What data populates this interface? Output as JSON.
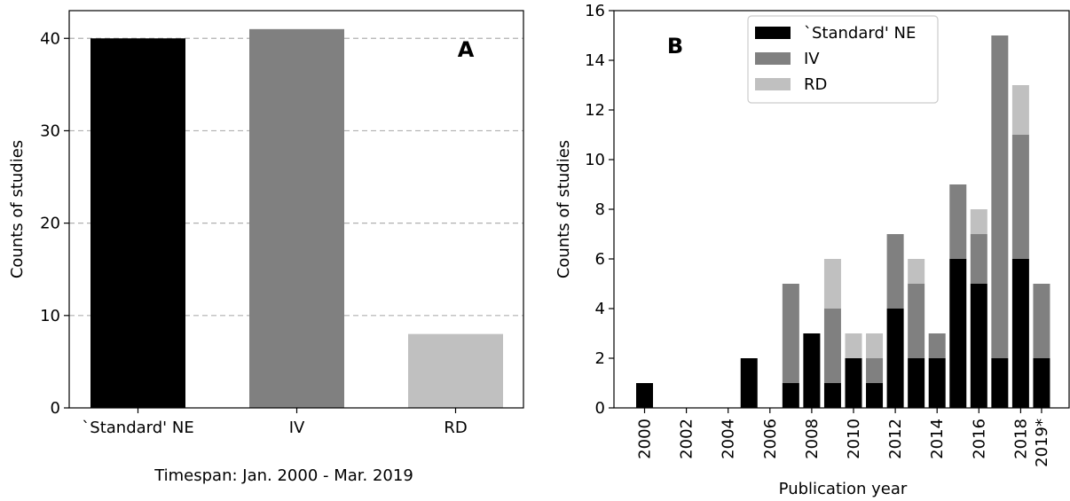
{
  "colors": {
    "standard_ne": "#000000",
    "iv": "#808080",
    "rd": "#c0c0c0",
    "grid": "#b0b0b0",
    "axis": "#000000"
  },
  "chart_data": [
    {
      "type": "bar",
      "panel_label": "A",
      "categories": [
        "`Standard' NE",
        "IV",
        "RD"
      ],
      "values": [
        40,
        41,
        8
      ],
      "bar_colors": [
        "#000000",
        "#808080",
        "#c0c0c0"
      ],
      "ylabel": "Counts of studies",
      "xlabel": "Timespan: Jan. 2000 - Mar. 2019",
      "ylim": [
        0,
        43
      ],
      "yticks": [
        0,
        10,
        20,
        30,
        40
      ],
      "grid": "horizontal dashed at y ticks",
      "legend": "none"
    },
    {
      "type": "bar",
      "stacked": true,
      "panel_label": "B",
      "categories": [
        "2000",
        "2001",
        "2002",
        "2003",
        "2004",
        "2005",
        "2006",
        "2007",
        "2008",
        "2009",
        "2010",
        "2011",
        "2012",
        "2013",
        "2014",
        "2015",
        "2016",
        "2017",
        "2018",
        "2019*"
      ],
      "xtick_labels": [
        "2000",
        "2002",
        "2004",
        "2006",
        "2008",
        "2010",
        "2012",
        "2014",
        "2016",
        "2018",
        "2019*"
      ],
      "series": [
        {
          "name": "`Standard' NE",
          "values": [
            1,
            0,
            0,
            0,
            0,
            2,
            0,
            1,
            3,
            1,
            2,
            1,
            4,
            2,
            2,
            6,
            5,
            2,
            6,
            2
          ]
        },
        {
          "name": "IV",
          "values": [
            0,
            0,
            0,
            0,
            0,
            0,
            0,
            4,
            0,
            3,
            0,
            1,
            3,
            3,
            1,
            3,
            2,
            13,
            5,
            3
          ]
        },
        {
          "name": "RD",
          "values": [
            0,
            0,
            0,
            0,
            0,
            0,
            0,
            0,
            0,
            2,
            1,
            1,
            0,
            1,
            0,
            0,
            1,
            0,
            2,
            0
          ]
        }
      ],
      "ylabel": "Counts of studies",
      "xlabel": "Publication year",
      "ylim": [
        0,
        16
      ],
      "yticks": [
        0,
        2,
        4,
        6,
        8,
        10,
        12,
        14,
        16
      ],
      "grid": "off",
      "legend": "top-center"
    }
  ]
}
